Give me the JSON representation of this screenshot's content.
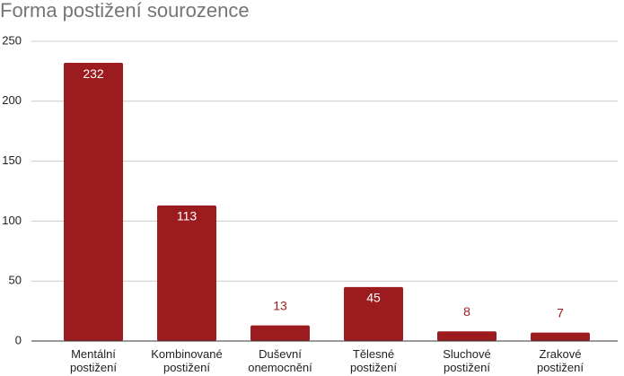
{
  "chart_data": {
    "type": "bar",
    "title": "Forma postižení sourozence",
    "categories": [
      "Mentální postižení",
      "Kombinované postižení",
      "Duševní onemocnění",
      "Tělesné postižení",
      "Sluchové postižení",
      "Zrakové postižení"
    ],
    "values": [
      232,
      113,
      13,
      45,
      8,
      7
    ],
    "color": "#9b1b1f",
    "ylim": [
      0,
      250
    ],
    "yticks": [
      0,
      50,
      100,
      150,
      200,
      250
    ],
    "grid": true
  }
}
